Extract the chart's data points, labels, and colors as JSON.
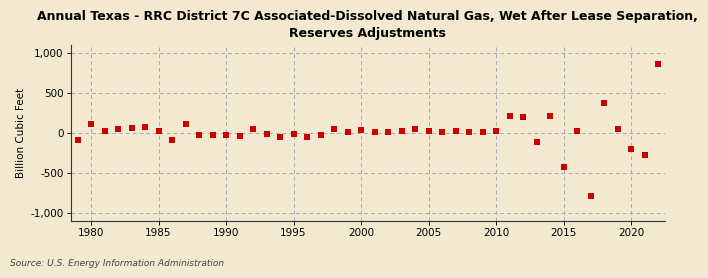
{
  "title": "Annual Texas - RRC District 7C Associated-Dissolved Natural Gas, Wet After Lease Separation,\nReserves Adjustments",
  "ylabel": "Billion Cubic Feet",
  "source": "Source: U.S. Energy Information Administration",
  "background_color": "#f3e8d0",
  "plot_bg_color": "#f3e8d0",
  "marker_color": "#cc0000",
  "years": [
    1979,
    1980,
    1981,
    1982,
    1983,
    1984,
    1985,
    1986,
    1987,
    1988,
    1989,
    1990,
    1991,
    1992,
    1993,
    1994,
    1995,
    1996,
    1997,
    1998,
    1999,
    2000,
    2001,
    2002,
    2003,
    2004,
    2005,
    2006,
    2007,
    2008,
    2009,
    2010,
    2011,
    2012,
    2013,
    2014,
    2015,
    2016,
    2017,
    2018,
    2019,
    2020,
    2021,
    2022
  ],
  "values": [
    -80,
    120,
    30,
    50,
    70,
    80,
    30,
    -80,
    120,
    -20,
    -20,
    -20,
    -40,
    50,
    -10,
    -50,
    -10,
    -50,
    -20,
    50,
    10,
    40,
    20,
    10,
    30,
    50,
    30,
    20,
    30,
    10,
    10,
    30,
    210,
    200,
    -110,
    210,
    -420,
    30,
    -780,
    380,
    50,
    -200,
    -270,
    870
  ],
  "xlim": [
    1978.5,
    2022.5
  ],
  "ylim": [
    -1100,
    1100
  ],
  "yticks": [
    -1000,
    -500,
    0,
    500,
    1000
  ],
  "xticks": [
    1980,
    1985,
    1990,
    1995,
    2000,
    2005,
    2010,
    2015,
    2020
  ],
  "grid_color": "#aaaaaa",
  "title_fontsize": 9,
  "ylabel_fontsize": 7.5,
  "tick_fontsize": 7.5,
  "source_fontsize": 6.5
}
